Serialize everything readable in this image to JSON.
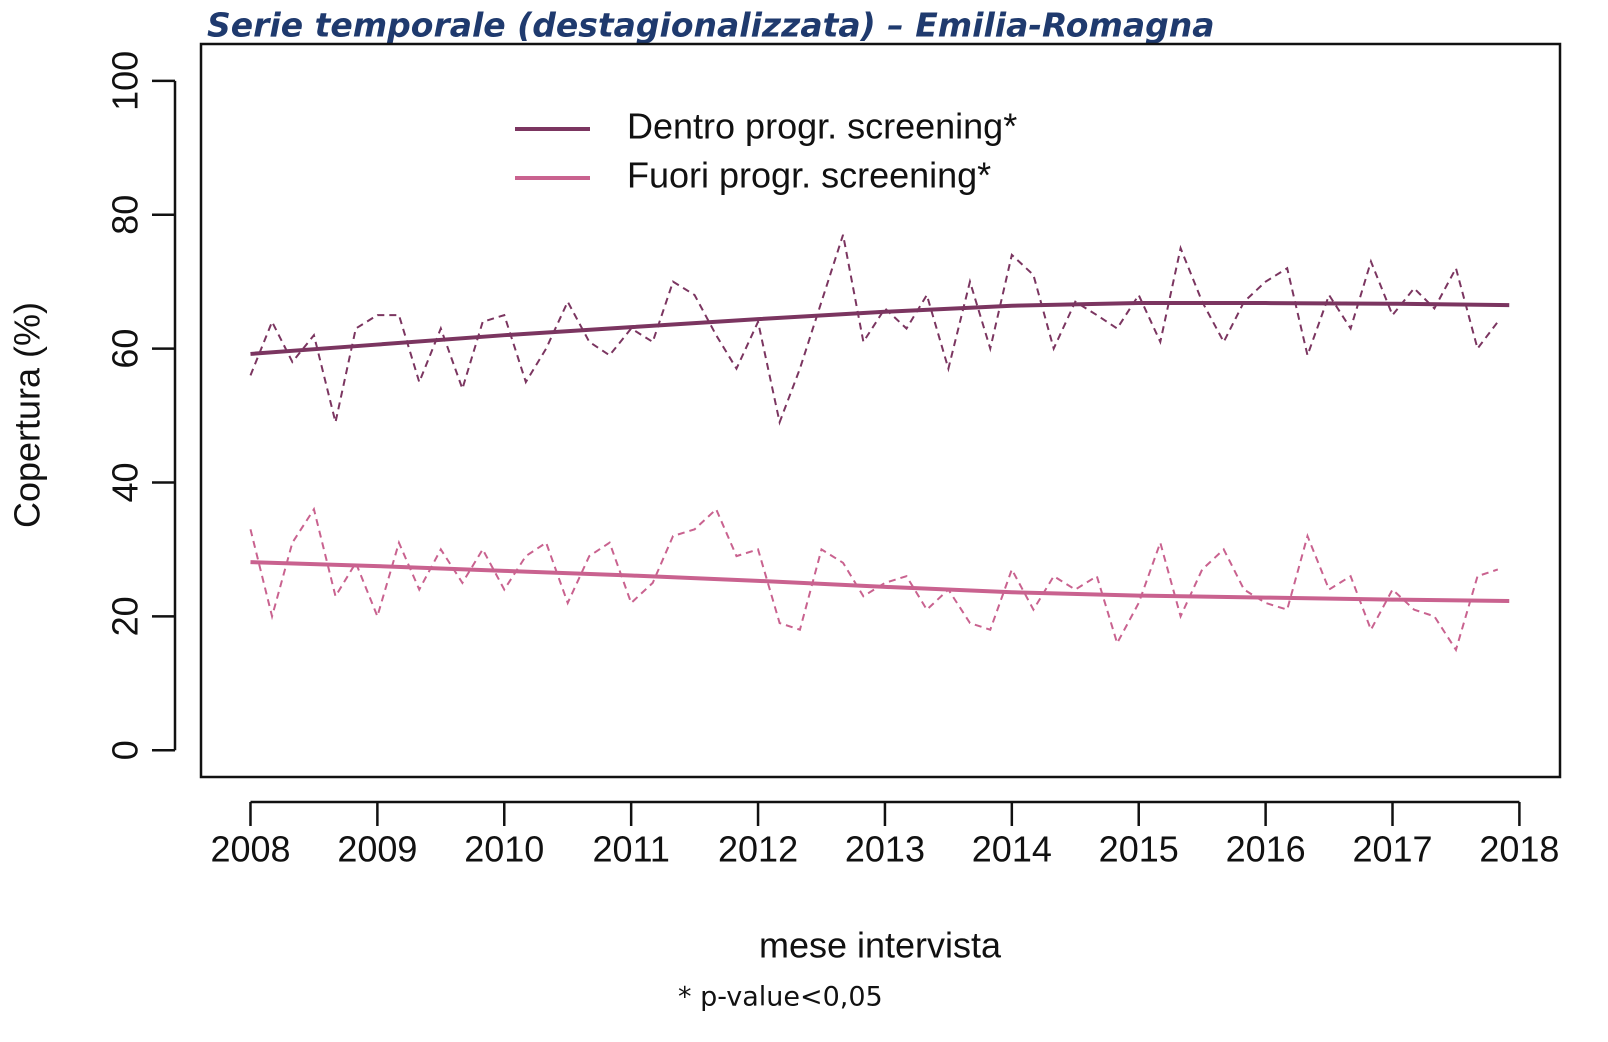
{
  "chart_data": {
    "type": "line",
    "title": "Serie temporale (destagionalizzata) – Emilia-Romagna",
    "ylabel": "Copertura (%)",
    "xlabel": "mese intervista",
    "footnote": "* p-value<0,05",
    "xlim": [
      2007.61,
      2018.32
    ],
    "ylim": [
      -4,
      105.5
    ],
    "xticks": [
      2008,
      2009,
      2010,
      2011,
      2012,
      2013,
      2014,
      2015,
      2016,
      2017,
      2018
    ],
    "yticks": [
      0,
      20,
      40,
      60,
      80,
      100
    ],
    "series": [
      {
        "color": "#7b3560",
        "linestyle": "dashed",
        "x": [
          2008,
          2008.17,
          2008.33,
          2008.5,
          2008.67,
          2008.83,
          2009,
          2009.17,
          2009.33,
          2009.5,
          2009.67,
          2009.83,
          2010,
          2010.17,
          2010.33,
          2010.5,
          2010.67,
          2010.83,
          2011,
          2011.17,
          2011.33,
          2011.5,
          2011.67,
          2011.83,
          2012,
          2012.17,
          2012.33,
          2012.5,
          2012.67,
          2012.83,
          2013,
          2013.17,
          2013.33,
          2013.5,
          2013.67,
          2013.83,
          2014,
          2014.17,
          2014.33,
          2014.5,
          2014.67,
          2014.83,
          2015,
          2015.17,
          2015.33,
          2015.5,
          2015.67,
          2015.83,
          2016,
          2016.17,
          2016.33,
          2016.5,
          2016.67,
          2016.83,
          2017,
          2017.17,
          2017.33,
          2017.5,
          2017.67,
          2017.83
        ],
        "values": [
          56,
          64,
          58,
          62,
          49,
          63,
          65,
          65,
          55,
          63,
          54,
          64,
          65,
          55,
          60,
          67,
          61,
          59,
          63,
          61,
          70,
          68,
          62,
          57,
          64,
          49,
          57,
          67,
          77,
          61,
          66,
          63,
          68,
          57,
          70,
          60,
          74,
          71,
          60,
          67,
          65,
          63,
          68,
          61,
          75,
          67,
          61,
          67,
          70,
          72,
          59,
          68,
          63,
          73,
          65,
          69,
          66,
          72,
          60,
          64
        ]
      },
      {
        "color": "#c9628f",
        "linestyle": "dashed",
        "x": [
          2008,
          2008.17,
          2008.33,
          2008.5,
          2008.67,
          2008.83,
          2009,
          2009.17,
          2009.33,
          2009.5,
          2009.67,
          2009.83,
          2010,
          2010.17,
          2010.33,
          2010.5,
          2010.67,
          2010.83,
          2011,
          2011.17,
          2011.33,
          2011.5,
          2011.67,
          2011.83,
          2012,
          2012.17,
          2012.33,
          2012.5,
          2012.67,
          2012.83,
          2013,
          2013.17,
          2013.33,
          2013.5,
          2013.67,
          2013.83,
          2014,
          2014.17,
          2014.33,
          2014.5,
          2014.67,
          2014.83,
          2015,
          2015.17,
          2015.33,
          2015.5,
          2015.67,
          2015.83,
          2016,
          2016.17,
          2016.33,
          2016.5,
          2016.67,
          2016.83,
          2017,
          2017.17,
          2017.33,
          2017.5,
          2017.67,
          2017.83
        ],
        "values": [
          33,
          20,
          31,
          36,
          23,
          28,
          20,
          31,
          24,
          30,
          25,
          30,
          24,
          29,
          31,
          22,
          29,
          31,
          22,
          25,
          32,
          33,
          36,
          29,
          30,
          19,
          18,
          30,
          28,
          23,
          25,
          26,
          21,
          24,
          19,
          18,
          27,
          21,
          26,
          24,
          26,
          16,
          22,
          31,
          20,
          27,
          30,
          24,
          22,
          21,
          32,
          24,
          26,
          18,
          24,
          21,
          20,
          15,
          26,
          27
        ]
      },
      {
        "name": "Dentro progr. screening*",
        "color": "#7b3560",
        "linestyle": "solid",
        "x": [
          2008,
          2009,
          2010,
          2011,
          2012,
          2013,
          2014,
          2015,
          2016,
          2017,
          2017.92
        ],
        "values": [
          59.2,
          60.6,
          62,
          63.2,
          64.4,
          65.5,
          66.4,
          66.8,
          66.8,
          66.7,
          66.5
        ]
      },
      {
        "name": "Fuori progr. screening*",
        "color": "#c9628f",
        "linestyle": "solid",
        "x": [
          2008,
          2009,
          2010,
          2011,
          2012,
          2013,
          2014,
          2015,
          2016,
          2017,
          2017.92
        ],
        "values": [
          28.1,
          27.5,
          26.8,
          26.1,
          25.3,
          24.4,
          23.6,
          23.1,
          22.8,
          22.5,
          22.3
        ]
      }
    ]
  }
}
